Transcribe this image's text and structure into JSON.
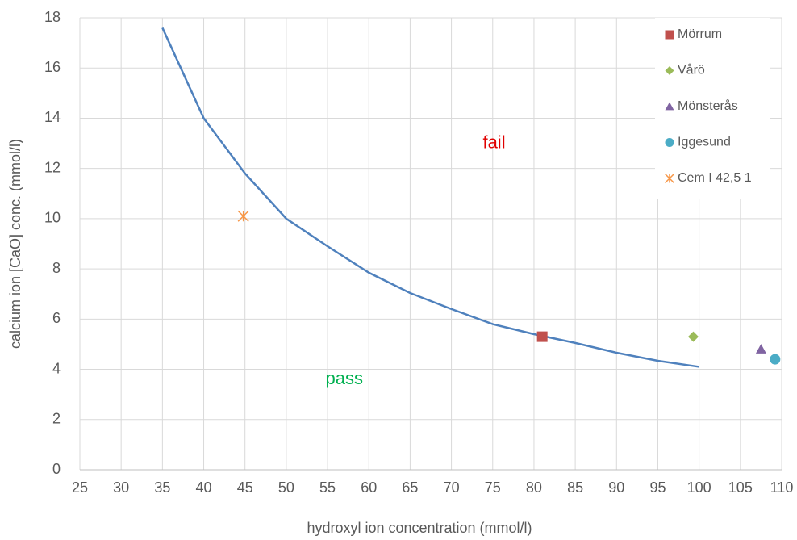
{
  "chart_data": {
    "type": "scatter",
    "x_label": "hydroxyl ion concentration (mmol/l)",
    "y_label": "calcium ion [CaO] conc. (mmol/l)",
    "xlim": [
      25,
      110
    ],
    "xticks": [
      25,
      30,
      35,
      40,
      45,
      50,
      55,
      60,
      65,
      70,
      75,
      80,
      85,
      90,
      95,
      100,
      105,
      110
    ],
    "ylim": [
      0,
      18
    ],
    "yticks": [
      0,
      2,
      4,
      6,
      8,
      10,
      12,
      14,
      16,
      18
    ],
    "grid": true,
    "legend": "upper right",
    "curve": {
      "color": "#4f81bd",
      "x": [
        35,
        40,
        45,
        50,
        55,
        60,
        65,
        70,
        75,
        80,
        85,
        90,
        95,
        100
      ],
      "values": [
        17.6,
        14,
        11.8,
        10,
        8.9,
        7.85,
        7.04,
        6.4,
        5.8,
        5.4,
        5.05,
        4.66,
        4.34,
        4.1
      ]
    },
    "series": [
      {
        "name": "Mörrum",
        "color": "#c0504d",
        "marker": "square",
        "x": [
          81
        ],
        "values": [
          5.3
        ]
      },
      {
        "name": "Vårö",
        "color": "#9bbb59",
        "marker": "diamond",
        "x": [
          99.3
        ],
        "values": [
          5.3
        ]
      },
      {
        "name": "Mönsterås",
        "color": "#8064a2",
        "marker": "triangle",
        "x": [
          107.5
        ],
        "values": [
          4.8
        ]
      },
      {
        "name": "Iggesund",
        "color": "#4bacc6",
        "marker": "circle",
        "x": [
          109.2
        ],
        "values": [
          4.4
        ]
      },
      {
        "name": "Cem I 42,5 1",
        "color": "#f79646",
        "marker": "asterisk",
        "x": [
          44.8
        ],
        "values": [
          10.1
        ]
      }
    ],
    "annotations": [
      {
        "text": "fail",
        "color": "#e00000"
      },
      {
        "text": "pass",
        "color": "#00b050"
      }
    ]
  }
}
